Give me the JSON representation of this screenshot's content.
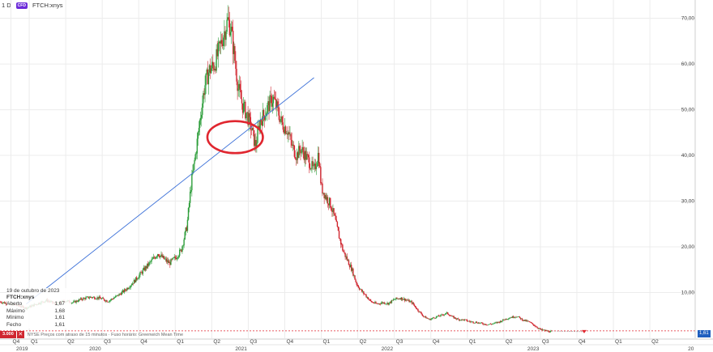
{
  "header": {
    "interval": "1 D",
    "badge": "CFD",
    "symbol": "FTCH:xnys"
  },
  "info_panel": {
    "date": "19 de outubro de 2023",
    "symbol": "FTCH:xnys",
    "rows": [
      {
        "label": "Aberto",
        "value": "1,67"
      },
      {
        "label": "Máximo",
        "value": "1,68"
      },
      {
        "label": "Mínimo",
        "value": "1,61"
      },
      {
        "label": "Fecho",
        "value": "1,61"
      }
    ]
  },
  "bottom_bar": {
    "volume_label": "3.000",
    "note": "NYSE Preços com atraso de 15 minutos · Fuso horário: Greenwich Mean Time"
  },
  "last_price_label": "1,61",
  "colors": {
    "up": "#2e9e3b",
    "down": "#d0262f",
    "trendline": "#3a6fd8",
    "ellipse": "#e0262f",
    "price_line": "#e0262f"
  },
  "chart_data": {
    "type": "candlestick",
    "title": "",
    "xlabel": "",
    "ylabel": "",
    "ylim": [
      0,
      74
    ],
    "y_ticks": [
      "10,00",
      "20,00",
      "30,00",
      "40,00",
      "50,00",
      "60,00",
      "70,00"
    ],
    "y_tick_values": [
      10,
      20,
      30,
      40,
      50,
      60,
      70
    ],
    "x_ticks": [
      {
        "label": "Q4",
        "t": 2018.875
      },
      {
        "label": "Q1",
        "t": 2019.0
      },
      {
        "label": "Q2",
        "t": 2019.25
      },
      {
        "label": "Q3",
        "t": 2019.5
      },
      {
        "label": "Q4",
        "t": 2019.75
      },
      {
        "label": "Q1",
        "t": 2020.0
      },
      {
        "label": "Q2",
        "t": 2020.25
      },
      {
        "label": "Q3",
        "t": 2020.5
      },
      {
        "label": "Q4",
        "t": 2020.75
      },
      {
        "label": "Q1",
        "t": 2021.0
      },
      {
        "label": "Q2",
        "t": 2021.25
      },
      {
        "label": "Q3",
        "t": 2021.5
      },
      {
        "label": "Q4",
        "t": 2021.75
      },
      {
        "label": "Q1",
        "t": 2022.0
      },
      {
        "label": "Q2",
        "t": 2022.25
      },
      {
        "label": "Q3",
        "t": 2022.5
      },
      {
        "label": "Q4",
        "t": 2022.75
      },
      {
        "label": "Q1",
        "t": 2023.0
      },
      {
        "label": "Q2",
        "t": 2023.25
      }
    ],
    "year_labels": [
      {
        "label": "2019",
        "t": 2018.9
      },
      {
        "label": "2020",
        "t": 2019.4
      },
      {
        "label": "2021",
        "t": 2020.4
      },
      {
        "label": "2022",
        "t": 2021.4
      },
      {
        "label": "2023",
        "t": 2022.4
      },
      {
        "label": "20",
        "t": 2023.5
      }
    ],
    "price_path": [
      [
        2018.8,
        8.0
      ],
      [
        2018.86,
        7.5
      ],
      [
        2018.92,
        7.2
      ],
      [
        2018.98,
        6.6
      ],
      [
        2019.05,
        7.5
      ],
      [
        2019.12,
        8.3
      ],
      [
        2019.18,
        7.5
      ],
      [
        2019.25,
        8.2
      ],
      [
        2019.3,
        7.8
      ],
      [
        2019.36,
        8.6
      ],
      [
        2019.42,
        9.0
      ],
      [
        2019.48,
        8.8
      ],
      [
        2019.54,
        8.1
      ],
      [
        2019.6,
        9.2
      ],
      [
        2019.66,
        10.6
      ],
      [
        2019.72,
        12.5
      ],
      [
        2019.78,
        14.8
      ],
      [
        2019.84,
        17.0
      ],
      [
        2019.88,
        18.6
      ],
      [
        2019.92,
        17.4
      ],
      [
        2019.96,
        16.4
      ],
      [
        2020.0,
        17.6
      ],
      [
        2020.04,
        19.2
      ],
      [
        2020.08,
        24.5
      ],
      [
        2020.11,
        34.0
      ],
      [
        2020.14,
        40.5
      ],
      [
        2020.17,
        48.0
      ],
      [
        2020.2,
        55.0
      ],
      [
        2020.23,
        58.5
      ],
      [
        2020.27,
        60.0
      ],
      [
        2020.3,
        63.0
      ],
      [
        2020.33,
        66.5
      ],
      [
        2020.36,
        69.5
      ],
      [
        2020.38,
        68.0
      ],
      [
        2020.4,
        63.0
      ],
      [
        2020.43,
        55.0
      ],
      [
        2020.46,
        51.0
      ],
      [
        2020.49,
        49.0
      ],
      [
        2020.52,
        46.0
      ],
      [
        2020.55,
        42.0
      ],
      [
        2020.58,
        47.5
      ],
      [
        2020.61,
        49.0
      ],
      [
        2020.64,
        51.0
      ],
      [
        2020.67,
        52.5
      ],
      [
        2020.7,
        50.0
      ],
      [
        2020.73,
        47.0
      ],
      [
        2020.77,
        45.5
      ],
      [
        2020.8,
        42.0
      ],
      [
        2020.83,
        40.0
      ],
      [
        2020.86,
        41.5
      ],
      [
        2020.89,
        40.0
      ],
      [
        2020.92,
        38.5
      ],
      [
        2020.95,
        36.5
      ],
      [
        2020.98,
        40.5
      ],
      [
        2021.0,
        33.0
      ],
      [
        2021.03,
        31.0
      ],
      [
        2021.06,
        29.5
      ],
      [
        2021.09,
        26.5
      ],
      [
        2021.12,
        22.5
      ],
      [
        2021.15,
        19.0
      ],
      [
        2021.18,
        17.0
      ],
      [
        2021.21,
        15.0
      ],
      [
        2021.24,
        12.0
      ],
      [
        2021.27,
        10.5
      ],
      [
        2021.3,
        9.5
      ],
      [
        2021.34,
        8.0
      ],
      [
        2021.38,
        7.5
      ],
      [
        2021.42,
        7.8
      ],
      [
        2021.46,
        7.6
      ],
      [
        2021.5,
        8.5
      ],
      [
        2021.54,
        8.8
      ],
      [
        2021.58,
        8.4
      ],
      [
        2021.62,
        7.8
      ],
      [
        2021.66,
        6.2
      ],
      [
        2021.7,
        4.8
      ],
      [
        2021.74,
        4.1
      ],
      [
        2021.78,
        4.6
      ],
      [
        2021.82,
        5.0
      ],
      [
        2021.86,
        5.5
      ],
      [
        2021.9,
        4.6
      ],
      [
        2021.94,
        4.1
      ],
      [
        2021.98,
        4.0
      ],
      [
        2022.02,
        3.6
      ],
      [
        2022.06,
        3.5
      ],
      [
        2022.1,
        3.2
      ],
      [
        2022.14,
        3.0
      ],
      [
        2022.18,
        3.2
      ],
      [
        2022.22,
        3.6
      ],
      [
        2022.26,
        4.2
      ],
      [
        2022.3,
        4.6
      ],
      [
        2022.34,
        4.8
      ],
      [
        2022.38,
        4.0
      ],
      [
        2022.42,
        3.6
      ],
      [
        2022.46,
        2.8
      ],
      [
        2022.5,
        1.9
      ],
      [
        2022.54,
        1.6
      ],
      [
        2022.58,
        1.4
      ]
    ],
    "trendline": {
      "from": [
        2018.98,
        7.5
      ],
      "to": [
        2020.95,
        57.0
      ]
    },
    "annotation_ellipse": {
      "center": [
        2020.41,
        44.0
      ],
      "rx_t": 0.19,
      "ry": 3.5
    },
    "last_price": 1.61
  }
}
